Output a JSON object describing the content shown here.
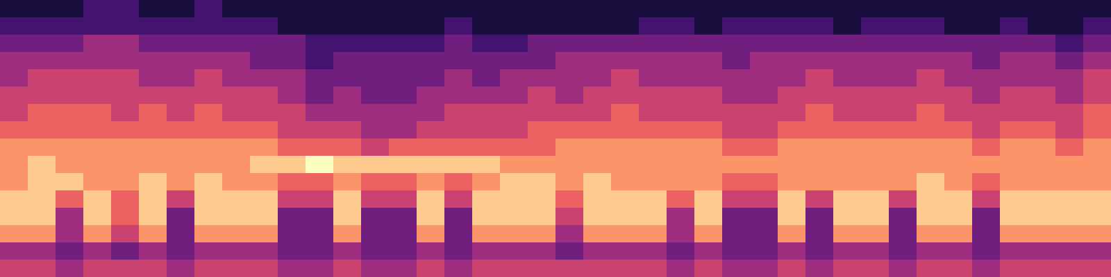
{
  "chart_data": {
    "type": "heatmap",
    "tick_labels": false,
    "zlim": [
      0,
      9
    ],
    "cells": [
      [
        1,
        1,
        1,
        2,
        2,
        1,
        1,
        2,
        1,
        1,
        1,
        1,
        1,
        1,
        1,
        1,
        1,
        1,
        1,
        1,
        1,
        1,
        1,
        1,
        1,
        1,
        1,
        1,
        1,
        1,
        1,
        1,
        1,
        1,
        1,
        1,
        1,
        1,
        1,
        1
      ],
      [
        2,
        2,
        2,
        2,
        2,
        2,
        2,
        2,
        2,
        2,
        1,
        1,
        1,
        1,
        1,
        1,
        2,
        1,
        1,
        1,
        1,
        1,
        1,
        2,
        2,
        1,
        2,
        2,
        2,
        2,
        1,
        2,
        2,
        2,
        1,
        1,
        2,
        1,
        1,
        2
      ],
      [
        3,
        3,
        3,
        4,
        4,
        3,
        3,
        3,
        3,
        3,
        3,
        2,
        2,
        2,
        2,
        2,
        3,
        2,
        2,
        3,
        3,
        3,
        3,
        3,
        3,
        3,
        3,
        3,
        3,
        3,
        3,
        3,
        3,
        3,
        3,
        3,
        3,
        3,
        2,
        3
      ],
      [
        4,
        4,
        4,
        4,
        4,
        4,
        4,
        4,
        4,
        3,
        3,
        2,
        3,
        3,
        3,
        3,
        3,
        3,
        3,
        3,
        4,
        4,
        4,
        4,
        4,
        4,
        3,
        4,
        4,
        4,
        4,
        4,
        4,
        4,
        4,
        3,
        4,
        4,
        3,
        4
      ],
      [
        4,
        5,
        5,
        5,
        5,
        4,
        4,
        5,
        4,
        4,
        4,
        3,
        3,
        3,
        3,
        3,
        4,
        3,
        4,
        4,
        4,
        4,
        5,
        4,
        4,
        4,
        4,
        4,
        4,
        5,
        4,
        4,
        4,
        5,
        4,
        4,
        4,
        4,
        4,
        5
      ],
      [
        5,
        5,
        5,
        5,
        5,
        5,
        5,
        5,
        5,
        5,
        4,
        3,
        4,
        3,
        3,
        4,
        4,
        4,
        4,
        5,
        4,
        5,
        5,
        5,
        5,
        5,
        4,
        4,
        5,
        5,
        5,
        5,
        5,
        5,
        5,
        4,
        5,
        5,
        4,
        5
      ],
      [
        5,
        6,
        6,
        6,
        5,
        6,
        5,
        6,
        5,
        5,
        5,
        4,
        4,
        4,
        4,
        4,
        5,
        5,
        5,
        5,
        5,
        5,
        6,
        5,
        5,
        5,
        5,
        5,
        5,
        6,
        5,
        5,
        5,
        6,
        5,
        5,
        5,
        5,
        5,
        6
      ],
      [
        6,
        6,
        6,
        6,
        6,
        6,
        6,
        6,
        6,
        6,
        5,
        5,
        5,
        4,
        4,
        5,
        5,
        5,
        5,
        6,
        6,
        6,
        6,
        6,
        6,
        6,
        5,
        5,
        6,
        6,
        6,
        6,
        6,
        6,
        6,
        5,
        6,
        6,
        5,
        6
      ],
      [
        7,
        7,
        7,
        7,
        7,
        7,
        7,
        7,
        7,
        7,
        6,
        6,
        6,
        5,
        6,
        6,
        6,
        6,
        6,
        6,
        7,
        7,
        7,
        7,
        7,
        7,
        6,
        6,
        7,
        7,
        7,
        7,
        7,
        7,
        7,
        6,
        7,
        7,
        6,
        7
      ],
      [
        7,
        8,
        7,
        7,
        7,
        7,
        7,
        7,
        7,
        8,
        8,
        9,
        8,
        8,
        8,
        8,
        8,
        8,
        7,
        7,
        7,
        7,
        7,
        7,
        7,
        7,
        7,
        7,
        7,
        7,
        7,
        7,
        7,
        7,
        7,
        7,
        7,
        7,
        7,
        7
      ],
      [
        7,
        8,
        8,
        7,
        7,
        8,
        7,
        8,
        7,
        7,
        6,
        6,
        7,
        6,
        6,
        7,
        6,
        7,
        8,
        8,
        7,
        8,
        7,
        7,
        7,
        7,
        6,
        6,
        7,
        7,
        7,
        7,
        7,
        8,
        7,
        6,
        7,
        7,
        7,
        7
      ],
      [
        8,
        8,
        6,
        8,
        6,
        8,
        5,
        8,
        8,
        8,
        5,
        5,
        8,
        5,
        5,
        8,
        5,
        8,
        8,
        8,
        6,
        8,
        8,
        8,
        6,
        8,
        5,
        5,
        8,
        5,
        8,
        8,
        5,
        8,
        8,
        5,
        8,
        8,
        8,
        8
      ],
      [
        8,
        8,
        4,
        8,
        6,
        8,
        3,
        8,
        8,
        8,
        3,
        3,
        8,
        3,
        3,
        8,
        3,
        8,
        8,
        8,
        5,
        8,
        8,
        8,
        4,
        8,
        3,
        3,
        8,
        3,
        8,
        8,
        3,
        8,
        8,
        3,
        8,
        8,
        8,
        8
      ],
      [
        7,
        7,
        4,
        7,
        5,
        7,
        3,
        7,
        7,
        7,
        3,
        3,
        7,
        3,
        3,
        7,
        3,
        7,
        7,
        7,
        4,
        7,
        7,
        7,
        4,
        7,
        3,
        3,
        7,
        3,
        7,
        7,
        3,
        7,
        7,
        3,
        7,
        7,
        7,
        7
      ],
      [
        4,
        4,
        3,
        4,
        3,
        4,
        3,
        4,
        4,
        4,
        3,
        3,
        4,
        3,
        3,
        4,
        3,
        4,
        4,
        4,
        3,
        4,
        4,
        4,
        3,
        4,
        3,
        3,
        4,
        3,
        4,
        4,
        3,
        4,
        4,
        3,
        4,
        4,
        4,
        4
      ],
      [
        5,
        5,
        4,
        5,
        5,
        5,
        4,
        5,
        5,
        5,
        4,
        4,
        5,
        4,
        4,
        5,
        4,
        5,
        5,
        5,
        5,
        5,
        5,
        5,
        4,
        5,
        4,
        4,
        5,
        4,
        5,
        5,
        4,
        5,
        5,
        4,
        5,
        5,
        5,
        5
      ]
    ]
  }
}
